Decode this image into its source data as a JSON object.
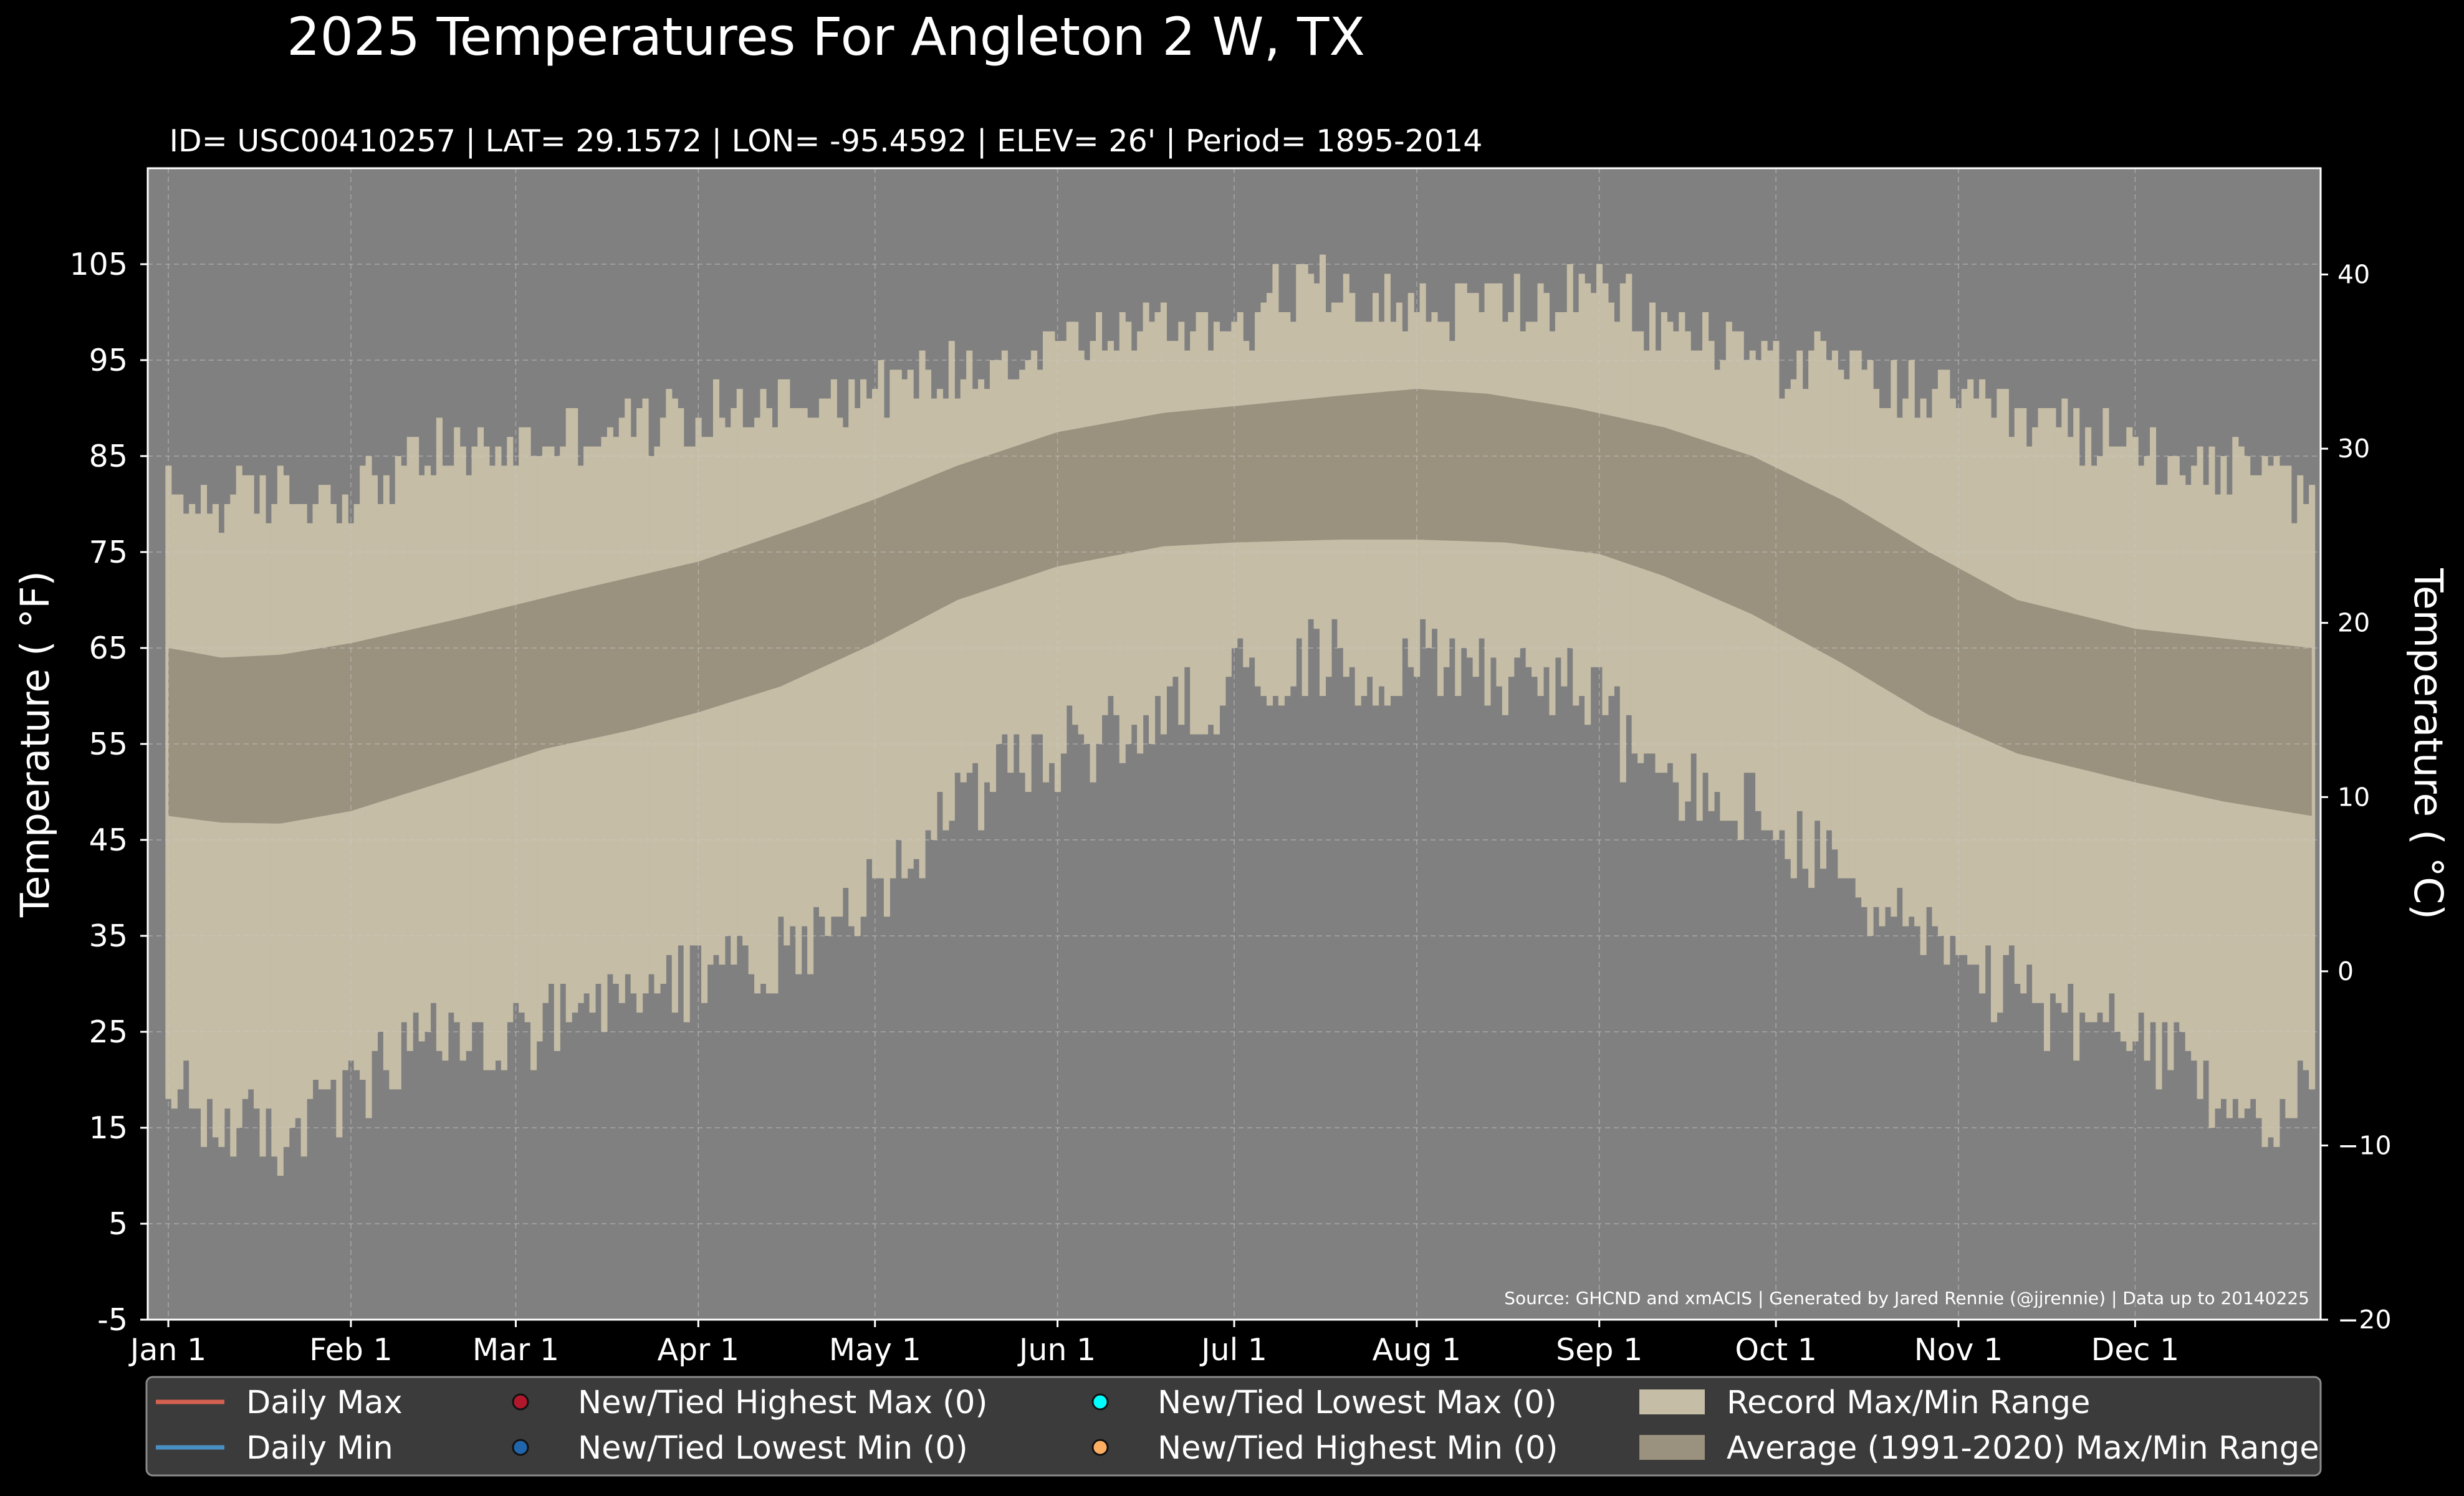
{
  "colors": {
    "background": "#000000",
    "plot_background": "#808080",
    "record_range": "#c5bda6",
    "average_range": "#9a917f",
    "daily_max": "#d4604f",
    "daily_min": "#4a8fc4",
    "highest_max_marker": "#b2182b",
    "lowest_min_marker": "#2166ac",
    "lowest_max_marker": "#00ffff",
    "highest_min_marker": "#fdae61",
    "legend_background": "#3b3b3b"
  },
  "chart_data": {
    "type": "area",
    "title": "2025 Temperatures For Angleton 2 W, TX",
    "subtitle": "ID= USC00410257 | LAT= 29.1572 | LON= -95.4592 | ELEV= 26' | Period= 1895-2014",
    "ylabel": "Temperature ( °F)",
    "y2label": "Temperature ( °C)",
    "ylim": [
      -5,
      115
    ],
    "y2lim": [
      -20,
      46.1
    ],
    "xlim": [
      -2.5,
      366.5
    ],
    "yticks": [
      -5,
      5,
      15,
      25,
      35,
      45,
      55,
      65,
      75,
      85,
      95,
      105
    ],
    "y2ticks": [
      {
        "value": -20,
        "label": "−20"
      },
      {
        "value": -10,
        "label": "−10"
      },
      {
        "value": 0,
        "label": "0"
      },
      {
        "value": 10,
        "label": "10"
      },
      {
        "value": 20,
        "label": "20"
      },
      {
        "value": 30,
        "label": "30"
      },
      {
        "value": 40,
        "label": "40"
      }
    ],
    "xticks": [
      {
        "day": 1,
        "label": "Jan 1"
      },
      {
        "day": 32,
        "label": "Feb 1"
      },
      {
        "day": 60,
        "label": "Mar 1"
      },
      {
        "day": 91,
        "label": "Apr 1"
      },
      {
        "day": 121,
        "label": "May 1"
      },
      {
        "day": 152,
        "label": "Jun 1"
      },
      {
        "day": 182,
        "label": "Jul 1"
      },
      {
        "day": 213,
        "label": "Aug 1"
      },
      {
        "day": 244,
        "label": "Sep 1"
      },
      {
        "day": 274,
        "label": "Oct 1"
      },
      {
        "day": 305,
        "label": "Nov 1"
      },
      {
        "day": 335,
        "label": "Dec 1"
      }
    ],
    "grid": true,
    "source": "Source: GHCND and xmACIS | Generated by Jared Rennie (@jjrennie) | Data up to 20140225",
    "record_max_anchors": [
      [
        1,
        81
      ],
      [
        10,
        80
      ],
      [
        20,
        81
      ],
      [
        32,
        81
      ],
      [
        45,
        85
      ],
      [
        60,
        86
      ],
      [
        75,
        88
      ],
      [
        91,
        89
      ],
      [
        105,
        91
      ],
      [
        121,
        92
      ],
      [
        135,
        94
      ],
      [
        152,
        97
      ],
      [
        165,
        98
      ],
      [
        182,
        99
      ],
      [
        195,
        103
      ],
      [
        205,
        102
      ],
      [
        213,
        100
      ],
      [
        225,
        101
      ],
      [
        235,
        101
      ],
      [
        244,
        102
      ],
      [
        255,
        98
      ],
      [
        265,
        97
      ],
      [
        274,
        95
      ],
      [
        285,
        94
      ],
      [
        295,
        92
      ],
      [
        305,
        90
      ],
      [
        320,
        88
      ],
      [
        335,
        86
      ],
      [
        350,
        84
      ],
      [
        365,
        81
      ]
    ],
    "record_min_anchors": [
      [
        1,
        18
      ],
      [
        10,
        16
      ],
      [
        20,
        14
      ],
      [
        32,
        18
      ],
      [
        45,
        24
      ],
      [
        60,
        24
      ],
      [
        75,
        27
      ],
      [
        91,
        31
      ],
      [
        105,
        33
      ],
      [
        115,
        38
      ],
      [
        121,
        40
      ],
      [
        130,
        45
      ],
      [
        140,
        51
      ],
      [
        152,
        54
      ],
      [
        165,
        57
      ],
      [
        175,
        59
      ],
      [
        182,
        62
      ],
      [
        195,
        64
      ],
      [
        205,
        63
      ],
      [
        213,
        64
      ],
      [
        225,
        63
      ],
      [
        235,
        62
      ],
      [
        244,
        60
      ],
      [
        250,
        53
      ],
      [
        260,
        50
      ],
      [
        270,
        48
      ],
      [
        280,
        43
      ],
      [
        290,
        39
      ],
      [
        300,
        35
      ],
      [
        305,
        31
      ],
      [
        315,
        29
      ],
      [
        325,
        26
      ],
      [
        335,
        24
      ],
      [
        345,
        20
      ],
      [
        355,
        16
      ],
      [
        365,
        18
      ]
    ],
    "avg_max_anchors": [
      [
        1,
        65
      ],
      [
        10,
        64
      ],
      [
        20,
        64.3
      ],
      [
        32,
        65.5
      ],
      [
        50,
        68
      ],
      [
        70,
        71
      ],
      [
        91,
        74
      ],
      [
        110,
        78
      ],
      [
        121,
        80.5
      ],
      [
        135,
        84
      ],
      [
        152,
        87.5
      ],
      [
        170,
        89.5
      ],
      [
        182,
        90.2
      ],
      [
        200,
        91.3
      ],
      [
        213,
        92
      ],
      [
        225,
        91.5
      ],
      [
        240,
        90
      ],
      [
        255,
        88
      ],
      [
        270,
        85
      ],
      [
        285,
        80.5
      ],
      [
        300,
        75
      ],
      [
        315,
        70
      ],
      [
        335,
        67
      ],
      [
        350,
        66
      ],
      [
        365,
        65
      ]
    ],
    "avg_min_anchors": [
      [
        1,
        47.5
      ],
      [
        10,
        46.8
      ],
      [
        20,
        46.7
      ],
      [
        32,
        48
      ],
      [
        50,
        51.5
      ],
      [
        65,
        54.5
      ],
      [
        80,
        56.5
      ],
      [
        91,
        58.3
      ],
      [
        105,
        61
      ],
      [
        121,
        65.5
      ],
      [
        135,
        70
      ],
      [
        152,
        73.5
      ],
      [
        170,
        75.6
      ],
      [
        182,
        76
      ],
      [
        200,
        76.3
      ],
      [
        213,
        76.3
      ],
      [
        228,
        76
      ],
      [
        244,
        74.8
      ],
      [
        255,
        72.5
      ],
      [
        270,
        68.5
      ],
      [
        285,
        63.5
      ],
      [
        300,
        58
      ],
      [
        315,
        54
      ],
      [
        335,
        51
      ],
      [
        350,
        49
      ],
      [
        365,
        47.5
      ]
    ]
  },
  "legend": {
    "items": [
      {
        "label": "Daily Max",
        "kind": "line",
        "color": "#d4604f"
      },
      {
        "label": "Daily Min",
        "kind": "line",
        "color": "#4a8fc4"
      },
      {
        "label": "New/Tied Highest Max (0)",
        "kind": "dot",
        "color": "#b2182b"
      },
      {
        "label": "New/Tied Lowest Min (0)",
        "kind": "dot",
        "color": "#2166ac"
      },
      {
        "label": "New/Tied Lowest Max (0)",
        "kind": "dot",
        "color": "#00ffff"
      },
      {
        "label": "New/Tied Highest Min (0)",
        "kind": "dot",
        "color": "#fdae61"
      },
      {
        "label": "Record Max/Min Range",
        "kind": "patch",
        "color": "#c5bda6"
      },
      {
        "label": "Average (1991-2020) Max/Min Range",
        "kind": "patch",
        "color": "#9a917f"
      }
    ]
  }
}
